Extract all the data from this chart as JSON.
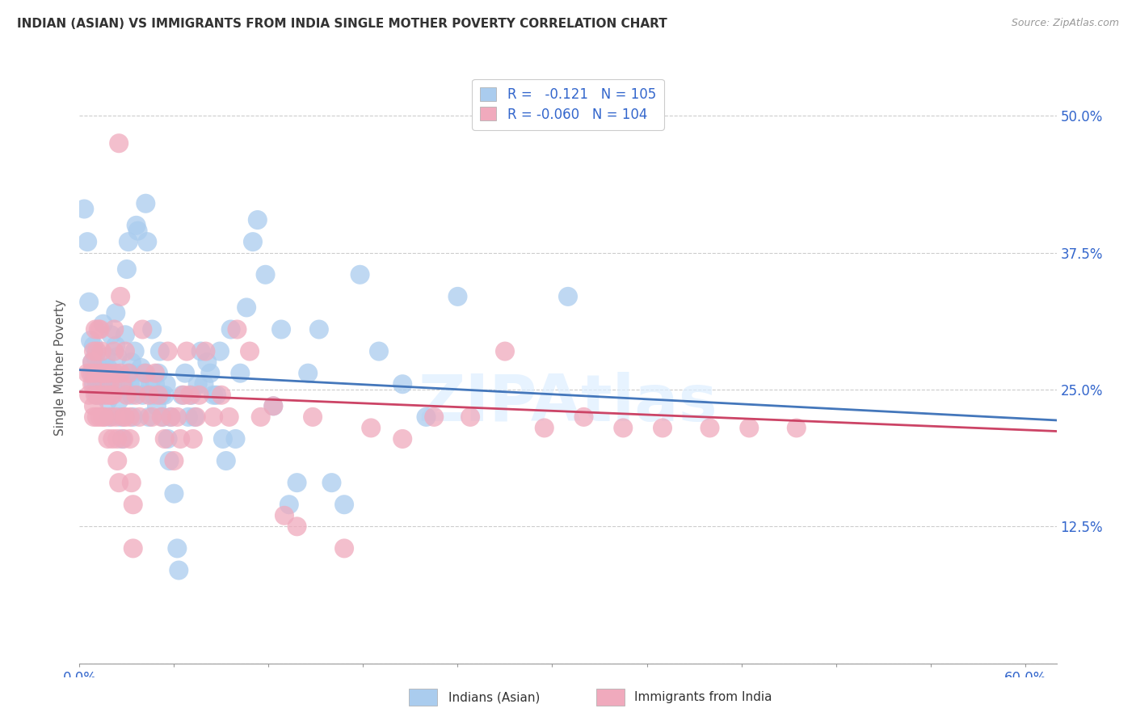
{
  "title": "INDIAN (ASIAN) VS IMMIGRANTS FROM INDIA SINGLE MOTHER POVERTY CORRELATION CHART",
  "source": "Source: ZipAtlas.com",
  "ylabel": "Single Mother Poverty",
  "yticks": [
    0.0,
    0.125,
    0.25,
    0.375,
    0.5
  ],
  "ytick_labels": [
    "",
    "12.5%",
    "25.0%",
    "37.5%",
    "50.0%"
  ],
  "xlim": [
    0.0,
    0.62
  ],
  "ylim": [
    0.0,
    0.54
  ],
  "color_blue": "#AACCEE",
  "color_pink": "#F0AABD",
  "trendline_blue_color": "#4477BB",
  "trendline_pink_color": "#CC4466",
  "blue_scatter": [
    [
      0.003,
      0.415
    ],
    [
      0.005,
      0.385
    ],
    [
      0.006,
      0.33
    ],
    [
      0.007,
      0.295
    ],
    [
      0.008,
      0.275
    ],
    [
      0.008,
      0.265
    ],
    [
      0.009,
      0.255
    ],
    [
      0.009,
      0.29
    ],
    [
      0.01,
      0.28
    ],
    [
      0.01,
      0.265
    ],
    [
      0.011,
      0.255
    ],
    [
      0.011,
      0.245
    ],
    [
      0.012,
      0.265
    ],
    [
      0.012,
      0.27
    ],
    [
      0.013,
      0.255
    ],
    [
      0.014,
      0.245
    ],
    [
      0.014,
      0.27
    ],
    [
      0.015,
      0.31
    ],
    [
      0.015,
      0.265
    ],
    [
      0.016,
      0.255
    ],
    [
      0.017,
      0.28
    ],
    [
      0.018,
      0.27
    ],
    [
      0.018,
      0.24
    ],
    [
      0.019,
      0.225
    ],
    [
      0.019,
      0.26
    ],
    [
      0.02,
      0.3
    ],
    [
      0.021,
      0.255
    ],
    [
      0.022,
      0.265
    ],
    [
      0.023,
      0.29
    ],
    [
      0.023,
      0.32
    ],
    [
      0.024,
      0.28
    ],
    [
      0.025,
      0.24
    ],
    [
      0.026,
      0.225
    ],
    [
      0.027,
      0.205
    ],
    [
      0.028,
      0.255
    ],
    [
      0.029,
      0.3
    ],
    [
      0.03,
      0.36
    ],
    [
      0.031,
      0.385
    ],
    [
      0.032,
      0.255
    ],
    [
      0.032,
      0.265
    ],
    [
      0.033,
      0.275
    ],
    [
      0.033,
      0.245
    ],
    [
      0.034,
      0.225
    ],
    [
      0.035,
      0.285
    ],
    [
      0.036,
      0.4
    ],
    [
      0.037,
      0.395
    ],
    [
      0.038,
      0.255
    ],
    [
      0.039,
      0.27
    ],
    [
      0.04,
      0.245
    ],
    [
      0.041,
      0.265
    ],
    [
      0.042,
      0.42
    ],
    [
      0.043,
      0.385
    ],
    [
      0.044,
      0.225
    ],
    [
      0.045,
      0.255
    ],
    [
      0.046,
      0.305
    ],
    [
      0.047,
      0.245
    ],
    [
      0.048,
      0.255
    ],
    [
      0.049,
      0.235
    ],
    [
      0.05,
      0.265
    ],
    [
      0.051,
      0.285
    ],
    [
      0.052,
      0.245
    ],
    [
      0.053,
      0.225
    ],
    [
      0.054,
      0.245
    ],
    [
      0.055,
      0.255
    ],
    [
      0.056,
      0.205
    ],
    [
      0.057,
      0.185
    ],
    [
      0.058,
      0.225
    ],
    [
      0.06,
      0.155
    ],
    [
      0.062,
      0.105
    ],
    [
      0.063,
      0.085
    ],
    [
      0.065,
      0.245
    ],
    [
      0.067,
      0.265
    ],
    [
      0.069,
      0.225
    ],
    [
      0.071,
      0.245
    ],
    [
      0.073,
      0.225
    ],
    [
      0.075,
      0.255
    ],
    [
      0.077,
      0.285
    ],
    [
      0.079,
      0.255
    ],
    [
      0.081,
      0.275
    ],
    [
      0.083,
      0.265
    ],
    [
      0.085,
      0.245
    ],
    [
      0.087,
      0.245
    ],
    [
      0.089,
      0.285
    ],
    [
      0.091,
      0.205
    ],
    [
      0.093,
      0.185
    ],
    [
      0.096,
      0.305
    ],
    [
      0.099,
      0.205
    ],
    [
      0.102,
      0.265
    ],
    [
      0.106,
      0.325
    ],
    [
      0.11,
      0.385
    ],
    [
      0.113,
      0.405
    ],
    [
      0.118,
      0.355
    ],
    [
      0.123,
      0.235
    ],
    [
      0.128,
      0.305
    ],
    [
      0.133,
      0.145
    ],
    [
      0.138,
      0.165
    ],
    [
      0.145,
      0.265
    ],
    [
      0.152,
      0.305
    ],
    [
      0.16,
      0.165
    ],
    [
      0.168,
      0.145
    ],
    [
      0.178,
      0.355
    ],
    [
      0.19,
      0.285
    ],
    [
      0.205,
      0.255
    ],
    [
      0.22,
      0.225
    ],
    [
      0.24,
      0.335
    ],
    [
      0.31,
      0.335
    ]
  ],
  "pink_scatter": [
    [
      0.005,
      0.265
    ],
    [
      0.006,
      0.245
    ],
    [
      0.007,
      0.265
    ],
    [
      0.008,
      0.275
    ],
    [
      0.008,
      0.255
    ],
    [
      0.009,
      0.235
    ],
    [
      0.009,
      0.225
    ],
    [
      0.009,
      0.285
    ],
    [
      0.01,
      0.305
    ],
    [
      0.01,
      0.265
    ],
    [
      0.01,
      0.245
    ],
    [
      0.011,
      0.225
    ],
    [
      0.011,
      0.285
    ],
    [
      0.012,
      0.305
    ],
    [
      0.012,
      0.245
    ],
    [
      0.013,
      0.225
    ],
    [
      0.013,
      0.305
    ],
    [
      0.014,
      0.265
    ],
    [
      0.014,
      0.285
    ],
    [
      0.015,
      0.225
    ],
    [
      0.015,
      0.265
    ],
    [
      0.016,
      0.245
    ],
    [
      0.016,
      0.225
    ],
    [
      0.017,
      0.265
    ],
    [
      0.018,
      0.205
    ],
    [
      0.018,
      0.245
    ],
    [
      0.019,
      0.255
    ],
    [
      0.019,
      0.265
    ],
    [
      0.02,
      0.225
    ],
    [
      0.02,
      0.245
    ],
    [
      0.021,
      0.205
    ],
    [
      0.021,
      0.245
    ],
    [
      0.022,
      0.305
    ],
    [
      0.022,
      0.285
    ],
    [
      0.023,
      0.265
    ],
    [
      0.023,
      0.225
    ],
    [
      0.024,
      0.185
    ],
    [
      0.024,
      0.205
    ],
    [
      0.025,
      0.165
    ],
    [
      0.025,
      0.475
    ],
    [
      0.026,
      0.335
    ],
    [
      0.026,
      0.265
    ],
    [
      0.027,
      0.255
    ],
    [
      0.028,
      0.205
    ],
    [
      0.028,
      0.225
    ],
    [
      0.029,
      0.285
    ],
    [
      0.029,
      0.225
    ],
    [
      0.03,
      0.245
    ],
    [
      0.031,
      0.265
    ],
    [
      0.032,
      0.225
    ],
    [
      0.032,
      0.205
    ],
    [
      0.033,
      0.165
    ],
    [
      0.034,
      0.145
    ],
    [
      0.034,
      0.105
    ],
    [
      0.036,
      0.245
    ],
    [
      0.038,
      0.225
    ],
    [
      0.04,
      0.305
    ],
    [
      0.042,
      0.265
    ],
    [
      0.044,
      0.245
    ],
    [
      0.046,
      0.225
    ],
    [
      0.048,
      0.265
    ],
    [
      0.05,
      0.245
    ],
    [
      0.052,
      0.225
    ],
    [
      0.054,
      0.205
    ],
    [
      0.056,
      0.285
    ],
    [
      0.058,
      0.225
    ],
    [
      0.06,
      0.185
    ],
    [
      0.062,
      0.225
    ],
    [
      0.064,
      0.205
    ],
    [
      0.066,
      0.245
    ],
    [
      0.068,
      0.285
    ],
    [
      0.07,
      0.245
    ],
    [
      0.072,
      0.205
    ],
    [
      0.074,
      0.225
    ],
    [
      0.076,
      0.245
    ],
    [
      0.08,
      0.285
    ],
    [
      0.085,
      0.225
    ],
    [
      0.09,
      0.245
    ],
    [
      0.095,
      0.225
    ],
    [
      0.1,
      0.305
    ],
    [
      0.108,
      0.285
    ],
    [
      0.115,
      0.225
    ],
    [
      0.123,
      0.235
    ],
    [
      0.13,
      0.135
    ],
    [
      0.138,
      0.125
    ],
    [
      0.148,
      0.225
    ],
    [
      0.168,
      0.105
    ],
    [
      0.185,
      0.215
    ],
    [
      0.205,
      0.205
    ],
    [
      0.225,
      0.225
    ],
    [
      0.248,
      0.225
    ],
    [
      0.27,
      0.285
    ],
    [
      0.295,
      0.215
    ],
    [
      0.32,
      0.225
    ],
    [
      0.345,
      0.215
    ],
    [
      0.37,
      0.215
    ],
    [
      0.4,
      0.215
    ],
    [
      0.425,
      0.215
    ],
    [
      0.455,
      0.215
    ]
  ],
  "blue_trend_x": [
    0.0,
    0.62
  ],
  "blue_trend_y": [
    0.268,
    0.222
  ],
  "pink_trend_x": [
    0.0,
    0.62
  ],
  "pink_trend_y": [
    0.248,
    0.212
  ]
}
